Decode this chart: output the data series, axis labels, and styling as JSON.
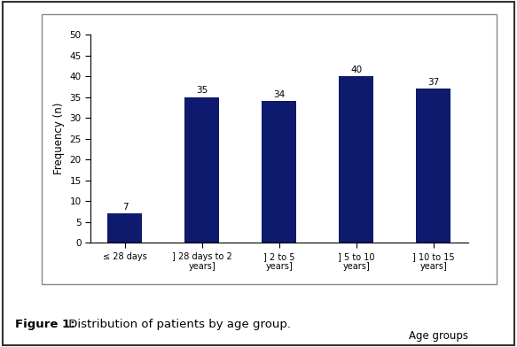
{
  "categories": [
    "≤ 28 days",
    "] 28 days to 2\nyears]",
    "] 2 to 5\nyears]",
    "] 5 to 10\nyears]",
    "] 10 to 15\nyears]"
  ],
  "values": [
    7,
    35,
    34,
    40,
    37
  ],
  "bar_color": "#0d1a6e",
  "ylabel": "Frequency (n)",
  "xlabel": "Age groups",
  "ylim": [
    0,
    50
  ],
  "yticks": [
    0,
    5,
    10,
    15,
    20,
    25,
    30,
    35,
    40,
    45,
    50
  ],
  "caption_bold": "Figure 1:",
  "caption_normal": " Distribution of patients by age group.",
  "figure_bg": "#ffffff",
  "inner_box_color": "#ffffff",
  "outer_border_color": "#333333",
  "inner_border_color": "#888888"
}
